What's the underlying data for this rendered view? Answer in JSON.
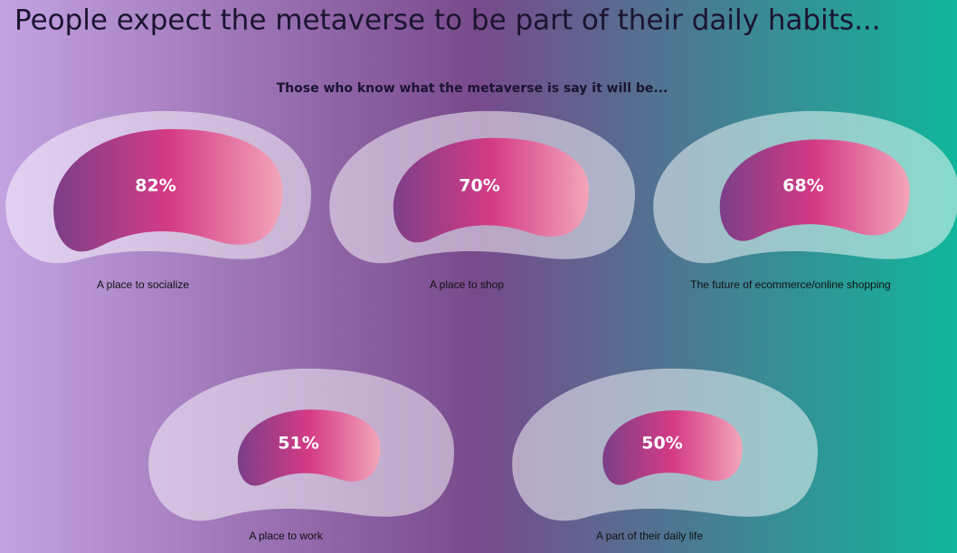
{
  "chart_data": {
    "type": "blob",
    "title": "People expect the metaverse to be part of their daily habits...",
    "subtitle": "Those who know what the metaverse is say it will be...",
    "categories": [
      "A place to socialize",
      "A place to shop",
      "The future of ecommerce/online shopping",
      "A place to work",
      "A part of their daily life"
    ],
    "values": [
      82,
      70,
      68,
      51,
      50
    ],
    "value_labels": [
      "82%",
      "70%",
      "68%",
      "51%",
      "50%"
    ]
  }
}
